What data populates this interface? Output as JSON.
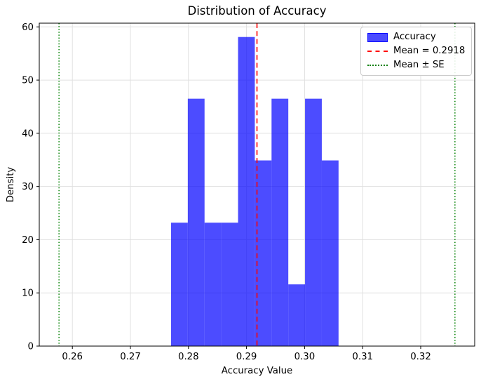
{
  "chart_data": {
    "type": "bar",
    "title": "Distribution of Accuracy",
    "xlabel": "Accuracy Value",
    "ylabel": "Density",
    "xlim": [
      0.2543,
      0.3293
    ],
    "ylim": [
      0,
      60.7
    ],
    "xticks": [
      0.26,
      0.27,
      0.28,
      0.29,
      0.3,
      0.31,
      0.32
    ],
    "xtick_labels": [
      "0.26",
      "0.27",
      "0.28",
      "0.29",
      "0.30",
      "0.31",
      "0.32"
    ],
    "yticks": [
      0,
      10,
      20,
      30,
      40,
      50,
      60
    ],
    "ytick_labels": [
      "0",
      "10",
      "20",
      "30",
      "40",
      "50",
      "60"
    ],
    "grid": true,
    "grid_color": "#e0e0e0",
    "legend_position": "upper right",
    "histogram": {
      "label": "Accuracy",
      "color": "#0000ff",
      "alpha": 0.7,
      "bin_start": 0.277,
      "bin_width": 0.002885,
      "densities": [
        23.2,
        46.5,
        23.2,
        23.2,
        58.1,
        34.9,
        46.5,
        11.6,
        46.5,
        34.9
      ]
    },
    "mean_line": {
      "value": 0.2918,
      "color": "#ff0000",
      "style": "dashed",
      "label": "Mean = 0.2918"
    },
    "se_lines": {
      "values": [
        0.2577,
        0.3259
      ],
      "color": "#008000",
      "style": "dotted",
      "label": "Mean ± SE"
    },
    "legend": {
      "entries": [
        {
          "swatch": "patch",
          "color": "#0000ff",
          "label": "Accuracy"
        },
        {
          "swatch": "dashed-line",
          "color": "#ff0000",
          "label": "Mean = 0.2918"
        },
        {
          "swatch": "dotted-line",
          "color": "#008000",
          "label": "Mean ± SE"
        }
      ]
    }
  }
}
